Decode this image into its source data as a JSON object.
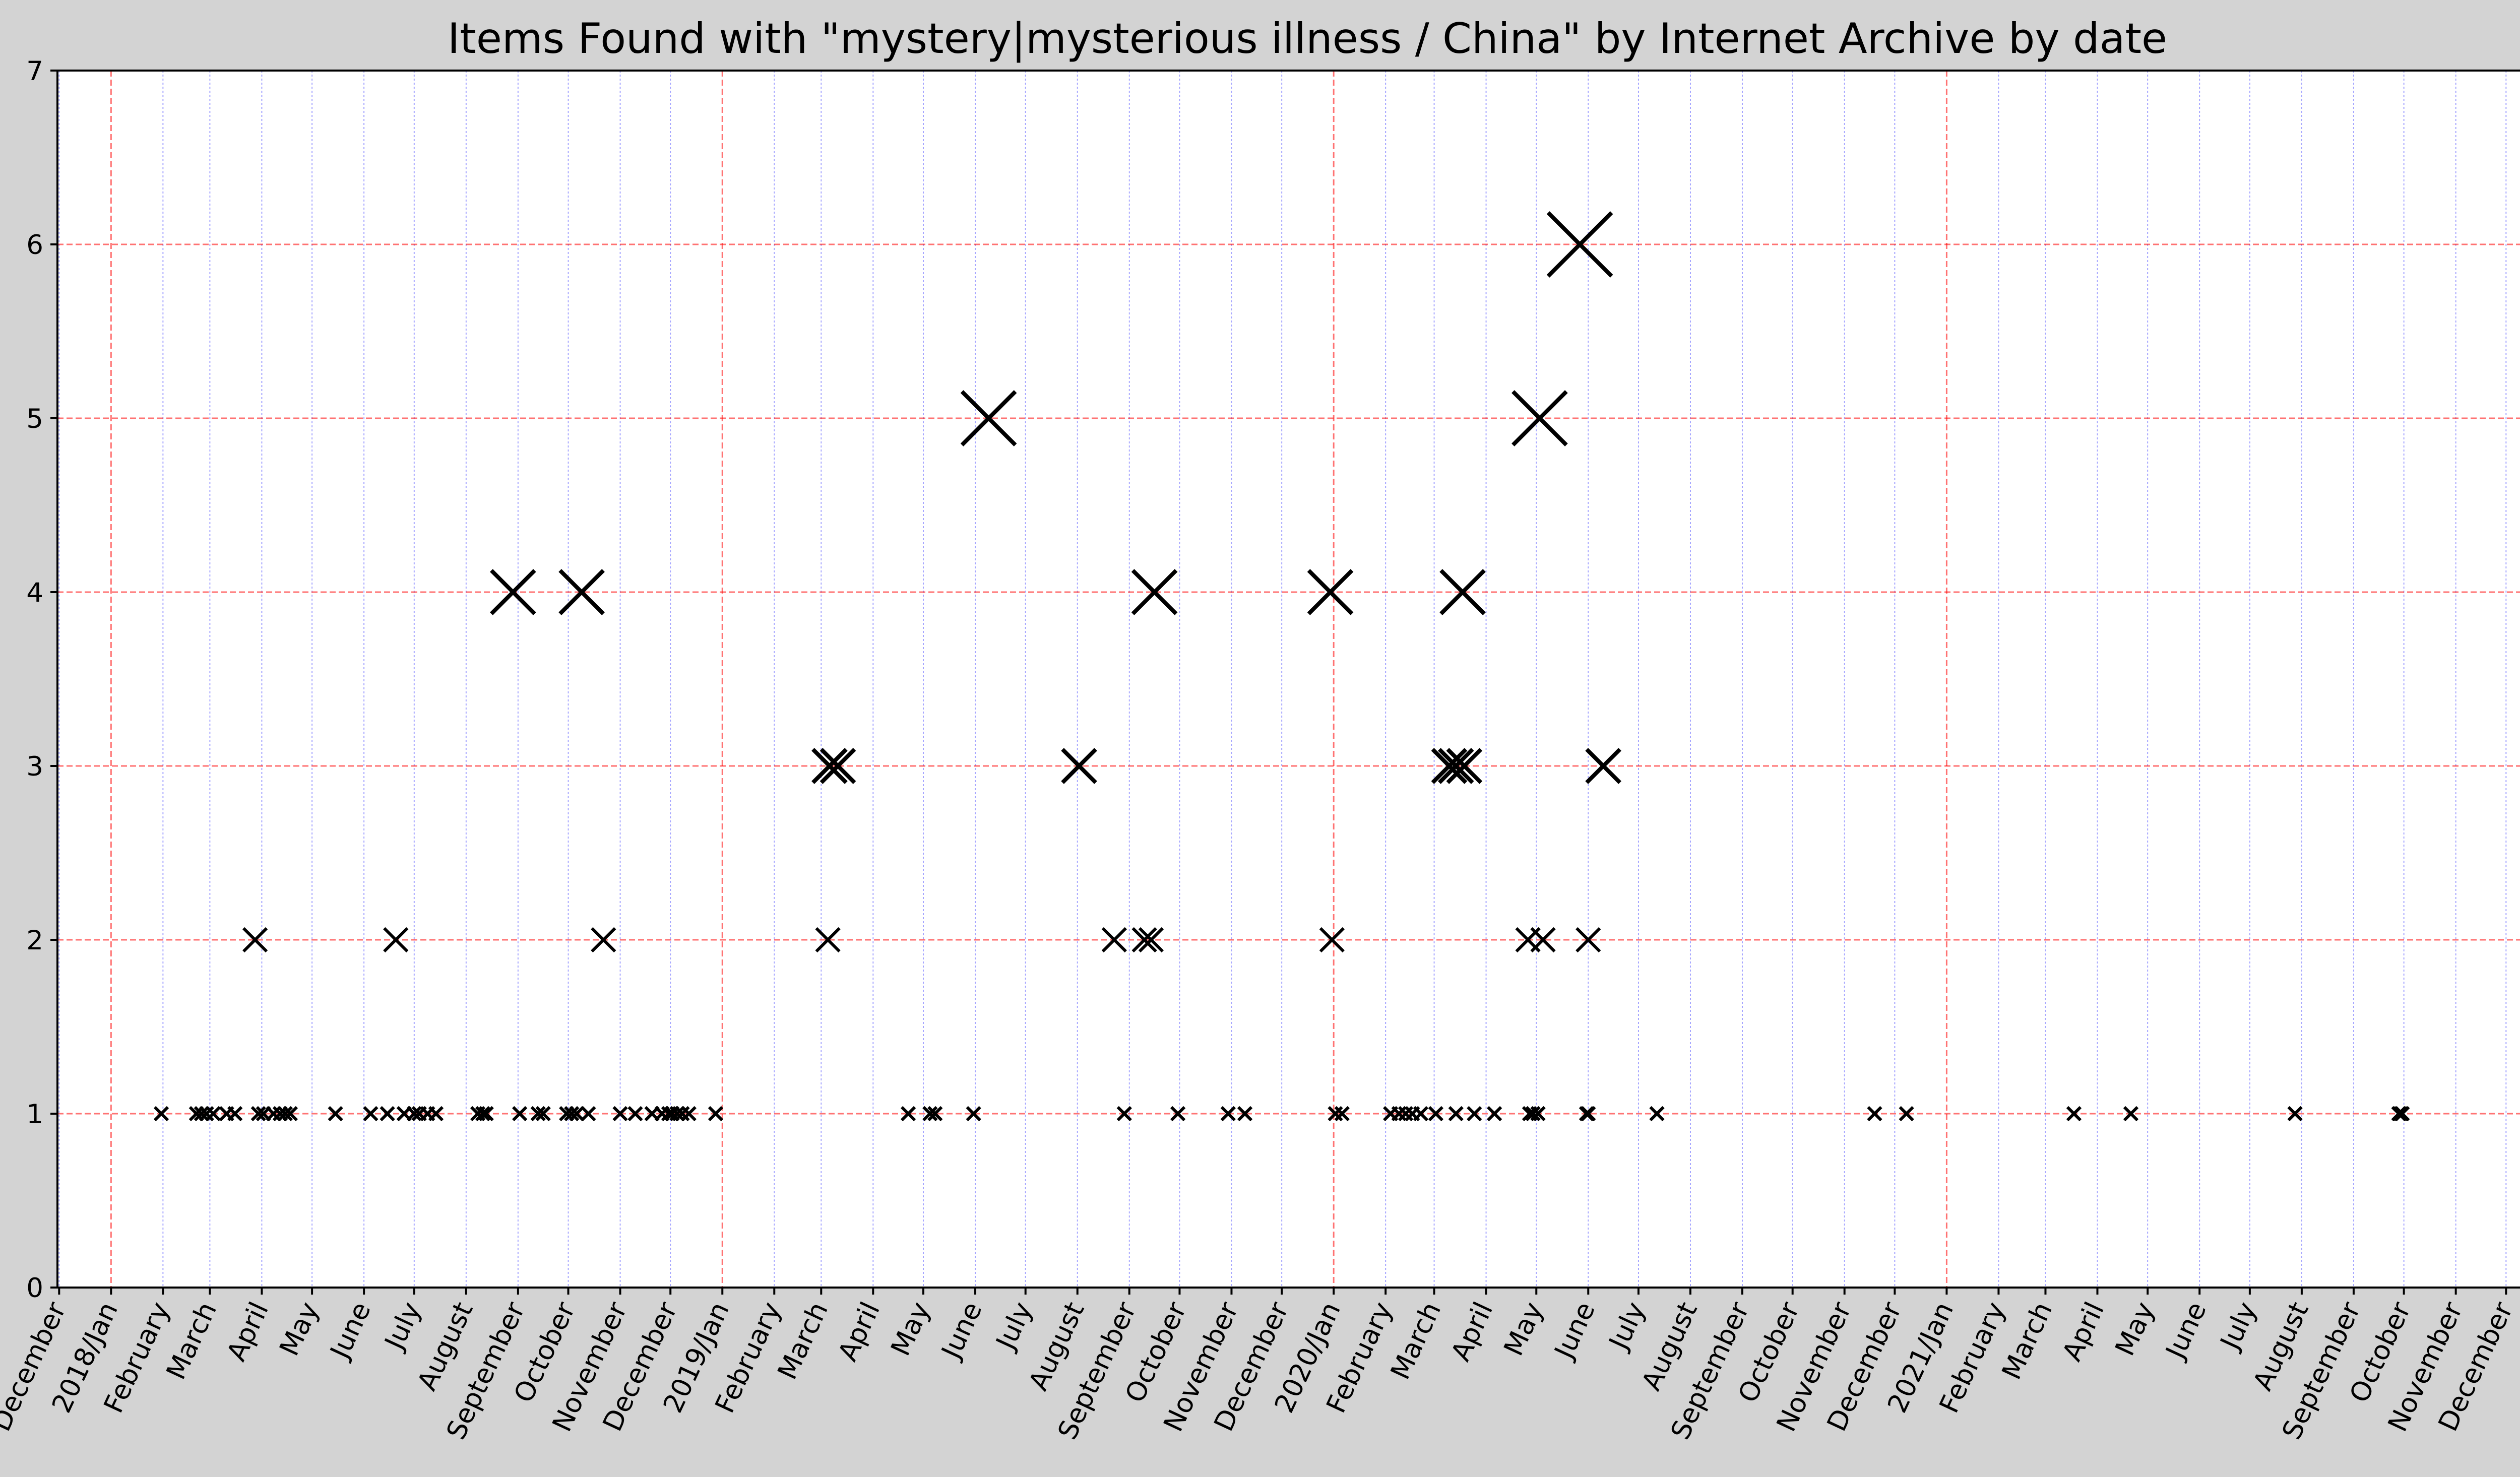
{
  "chart_data": {
    "type": "scatter",
    "title": "Items Found with \"mystery|mysterious illness / China\" by Internet Archive by date",
    "xlabel": "",
    "ylabel": "",
    "x_range": [
      "2017-11-30",
      "2021-12-31"
    ],
    "ylim": [
      0,
      7
    ],
    "y_ticks": [
      0,
      1,
      2,
      3,
      4,
      5,
      6,
      7
    ],
    "x_tick_dates": [
      "2017-12-01",
      "2018-01-01",
      "2018-02-01",
      "2018-03-01",
      "2018-04-01",
      "2018-05-01",
      "2018-06-01",
      "2018-07-01",
      "2018-08-01",
      "2018-09-01",
      "2018-10-01",
      "2018-11-01",
      "2018-12-01",
      "2019-01-01",
      "2019-02-01",
      "2019-03-01",
      "2019-04-01",
      "2019-05-01",
      "2019-06-01",
      "2019-07-01",
      "2019-08-01",
      "2019-09-01",
      "2019-10-01",
      "2019-11-01",
      "2019-12-01",
      "2020-01-01",
      "2020-02-01",
      "2020-03-01",
      "2020-04-01",
      "2020-05-01",
      "2020-06-01",
      "2020-07-01",
      "2020-08-01",
      "2020-09-01",
      "2020-10-01",
      "2020-11-01",
      "2020-12-01",
      "2021-01-01",
      "2021-02-01",
      "2021-03-01",
      "2021-04-01",
      "2021-05-01",
      "2021-06-01",
      "2021-07-01",
      "2021-08-01",
      "2021-09-01",
      "2021-10-01",
      "2021-11-01",
      "2021-12-01"
    ],
    "x_tick_labels": [
      "December",
      "2018/Jan",
      "February",
      "March",
      "April",
      "May",
      "June",
      "July",
      "August",
      "September",
      "October",
      "November",
      "December",
      "2019/Jan",
      "February",
      "March",
      "April",
      "May",
      "June",
      "July",
      "August",
      "September",
      "October",
      "November",
      "December",
      "2020/Jan",
      "February",
      "March",
      "April",
      "May",
      "June",
      "July",
      "August",
      "September",
      "October",
      "November",
      "December",
      "2021/Jan",
      "February",
      "March",
      "April",
      "May",
      "June",
      "July",
      "August",
      "September",
      "October",
      "November",
      "December"
    ],
    "grid": {
      "major_year": true,
      "minor_month": true,
      "horizontal": true
    },
    "colors": {
      "background": "#d3d3d3",
      "plot_bg": "#ffffff",
      "marker": "#000000",
      "year_grid": "#ff0000",
      "month_grid": "#0000ff",
      "h_grid": "#ff0000"
    },
    "series": [
      {
        "marker": "x",
        "points": [
          {
            "x": "2018-01-31",
            "y": 1
          },
          {
            "x": "2018-02-21",
            "y": 1
          },
          {
            "x": "2018-02-24",
            "y": 1
          },
          {
            "x": "2018-02-27",
            "y": 1
          },
          {
            "x": "2018-03-03",
            "y": 1
          },
          {
            "x": "2018-03-11",
            "y": 1
          },
          {
            "x": "2018-03-16",
            "y": 1
          },
          {
            "x": "2018-03-28",
            "y": 2
          },
          {
            "x": "2018-03-30",
            "y": 1
          },
          {
            "x": "2018-04-02",
            "y": 1
          },
          {
            "x": "2018-04-08",
            "y": 1
          },
          {
            "x": "2018-04-12",
            "y": 1
          },
          {
            "x": "2018-04-15",
            "y": 1
          },
          {
            "x": "2018-04-18",
            "y": 1
          },
          {
            "x": "2018-05-15",
            "y": 1
          },
          {
            "x": "2018-06-05",
            "y": 1
          },
          {
            "x": "2018-06-15",
            "y": 1
          },
          {
            "x": "2018-06-20",
            "y": 2
          },
          {
            "x": "2018-06-25",
            "y": 1
          },
          {
            "x": "2018-07-01",
            "y": 1
          },
          {
            "x": "2018-07-04",
            "y": 1
          },
          {
            "x": "2018-07-09",
            "y": 1
          },
          {
            "x": "2018-07-14",
            "y": 1
          },
          {
            "x": "2018-08-08",
            "y": 1
          },
          {
            "x": "2018-08-11",
            "y": 1
          },
          {
            "x": "2018-08-13",
            "y": 1
          },
          {
            "x": "2018-08-29",
            "y": 4
          },
          {
            "x": "2018-09-02",
            "y": 1
          },
          {
            "x": "2018-09-13",
            "y": 1
          },
          {
            "x": "2018-09-16",
            "y": 1
          },
          {
            "x": "2018-09-30",
            "y": 1
          },
          {
            "x": "2018-10-03",
            "y": 1
          },
          {
            "x": "2018-10-06",
            "y": 1
          },
          {
            "x": "2018-10-09",
            "y": 4
          },
          {
            "x": "2018-10-13",
            "y": 1
          },
          {
            "x": "2018-10-22",
            "y": 2
          },
          {
            "x": "2018-11-01",
            "y": 1
          },
          {
            "x": "2018-11-10",
            "y": 1
          },
          {
            "x": "2018-11-20",
            "y": 1
          },
          {
            "x": "2018-11-26",
            "y": 1
          },
          {
            "x": "2018-11-30",
            "y": 1
          },
          {
            "x": "2018-12-02",
            "y": 1
          },
          {
            "x": "2018-12-05",
            "y": 1
          },
          {
            "x": "2018-12-08",
            "y": 1
          },
          {
            "x": "2018-12-12",
            "y": 1
          },
          {
            "x": "2018-12-28",
            "y": 1
          },
          {
            "x": "2019-03-05",
            "y": 2
          },
          {
            "x": "2019-03-06",
            "y": 3
          },
          {
            "x": "2019-03-11",
            "y": 3
          },
          {
            "x": "2019-04-22",
            "y": 1
          },
          {
            "x": "2019-05-05",
            "y": 1
          },
          {
            "x": "2019-05-08",
            "y": 1
          },
          {
            "x": "2019-05-31",
            "y": 1
          },
          {
            "x": "2019-06-09",
            "y": 5
          },
          {
            "x": "2019-08-02",
            "y": 3
          },
          {
            "x": "2019-08-23",
            "y": 2
          },
          {
            "x": "2019-08-29",
            "y": 1
          },
          {
            "x": "2019-09-10",
            "y": 2
          },
          {
            "x": "2019-09-14",
            "y": 2
          },
          {
            "x": "2019-09-16",
            "y": 4
          },
          {
            "x": "2019-09-30",
            "y": 1
          },
          {
            "x": "2019-10-30",
            "y": 1
          },
          {
            "x": "2019-11-09",
            "y": 1
          },
          {
            "x": "2019-12-30",
            "y": 4
          },
          {
            "x": "2019-12-31",
            "y": 2
          },
          {
            "x": "2020-01-02",
            "y": 1
          },
          {
            "x": "2020-01-06",
            "y": 1
          },
          {
            "x": "2020-02-04",
            "y": 1
          },
          {
            "x": "2020-02-09",
            "y": 1
          },
          {
            "x": "2020-02-13",
            "y": 1
          },
          {
            "x": "2020-02-17",
            "y": 1
          },
          {
            "x": "2020-02-22",
            "y": 1
          },
          {
            "x": "2020-03-02",
            "y": 1
          },
          {
            "x": "2020-03-10",
            "y": 3
          },
          {
            "x": "2020-03-14",
            "y": 3
          },
          {
            "x": "2020-03-14",
            "y": 1
          },
          {
            "x": "2020-03-18",
            "y": 4
          },
          {
            "x": "2020-03-19",
            "y": 3
          },
          {
            "x": "2020-03-25",
            "y": 1
          },
          {
            "x": "2020-04-06",
            "y": 1
          },
          {
            "x": "2020-04-26",
            "y": 2
          },
          {
            "x": "2020-04-27",
            "y": 1
          },
          {
            "x": "2020-04-29",
            "y": 1
          },
          {
            "x": "2020-05-02",
            "y": 1
          },
          {
            "x": "2020-05-03",
            "y": 5
          },
          {
            "x": "2020-05-05",
            "y": 2
          },
          {
            "x": "2020-05-31",
            "y": 1
          },
          {
            "x": "2020-06-01",
            "y": 1
          },
          {
            "x": "2020-06-01",
            "y": 2
          },
          {
            "x": "2020-05-27",
            "y": 6
          },
          {
            "x": "2020-06-10",
            "y": 3
          },
          {
            "x": "2020-07-12",
            "y": 1
          },
          {
            "x": "2020-11-19",
            "y": 1
          },
          {
            "x": "2020-12-08",
            "y": 1
          },
          {
            "x": "2021-03-18",
            "y": 1
          },
          {
            "x": "2021-04-21",
            "y": 1
          },
          {
            "x": "2021-07-28",
            "y": 1
          },
          {
            "x": "2021-09-28",
            "y": 1
          },
          {
            "x": "2021-09-29",
            "y": 1
          },
          {
            "x": "2021-09-30",
            "y": 1
          }
        ]
      }
    ]
  }
}
